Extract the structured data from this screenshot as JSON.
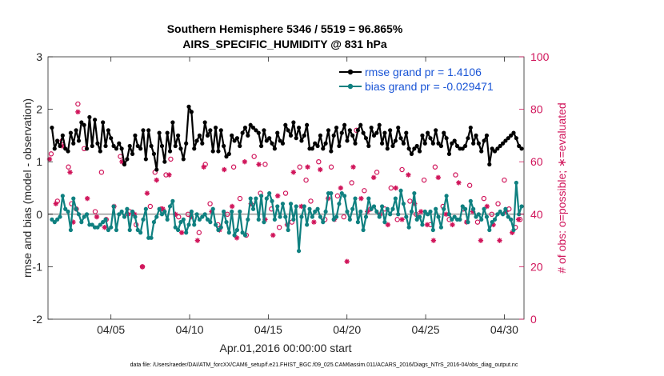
{
  "chart_data": {
    "type": "line",
    "title": "Southern Hemisphere 5346 / 5519 = 96.865%",
    "subtitle": "AIRS_SPECIFIC_HUMIDITY @ 831 hPa",
    "xlabel": "Apr.01,2016 00:00:00 start",
    "ylabel_left": "rmse and bias (model - observation)",
    "ylabel_right": "# of obs: o=possible; ∗=evaluated",
    "xlim": [
      1.0,
      31.25
    ],
    "ylim_left": [
      -2,
      3
    ],
    "ylim_right": [
      0,
      100
    ],
    "x_ticks": [
      5,
      10,
      15,
      20,
      25,
      30
    ],
    "x_tick_labels": [
      "04/05",
      "04/10",
      "04/15",
      "04/20",
      "04/25",
      "04/30"
    ],
    "y_ticks_left": [
      -2,
      -1,
      0,
      1,
      2,
      3
    ],
    "y_ticks_right": [
      0,
      20,
      40,
      60,
      80,
      100
    ],
    "legend_location": "top-right",
    "colors": {
      "rmse": "#000000",
      "bias": "#0f8080",
      "obs": "#d0145a",
      "zero_line": "#b0b0b0",
      "legend_text": "#1a55d6"
    },
    "series": [
      {
        "name": "rmse grand pr = 1.4106",
        "key": "rmse",
        "values": [
          1.65,
          1.25,
          1.4,
          1.3,
          1.5,
          1.25,
          1.2,
          1.55,
          1.35,
          1.6,
          1.4,
          1.75,
          1.7,
          1.25,
          1.85,
          1.3,
          1.8,
          1.35,
          1.2,
          1.75,
          1.3,
          1.6,
          1.45,
          1.3,
          1.25,
          1.35,
          1.25,
          0.95,
          1.05,
          1.3,
          1.15,
          1.5,
          1.3,
          1.25,
          1.6,
          1.05,
          1.6,
          1.3,
          1.15,
          0.85,
          1.55,
          1.3,
          1.0,
          1.55,
          1.2,
          1.75,
          1.3,
          1.5,
          1.25,
          1.05,
          1.35,
          2.05,
          1.95,
          1.25,
          1.4,
          1.5,
          1.35,
          1.75,
          1.5,
          1.6,
          1.2,
          1.65,
          1.2,
          1.6,
          1.3,
          1.1,
          1.15,
          1.5,
          1.4,
          1.45,
          1.3,
          1.55,
          1.65,
          1.5,
          1.7,
          1.65,
          1.6,
          1.55,
          1.3,
          1.6,
          1.4,
          1.45,
          1.35,
          1.25,
          1.55,
          1.4,
          1.35,
          1.7,
          1.6,
          1.5,
          1.75,
          1.45,
          1.65,
          1.4,
          1.5,
          1.7,
          1.25,
          1.25,
          1.35,
          1.3,
          1.5,
          1.25,
          1.35,
          1.6,
          1.2,
          1.5,
          1.65,
          1.3,
          1.55,
          1.7,
          1.4,
          1.6,
          1.5,
          1.35,
          1.6,
          1.7,
          1.55,
          1.45,
          1.3,
          1.65,
          1.5,
          1.55,
          1.7,
          1.35,
          1.55,
          1.25,
          1.6,
          1.3,
          1.4,
          1.65,
          1.45,
          1.35,
          1.55,
          1.25,
          1.15,
          1.25,
          1.3,
          1.2,
          1.5,
          1.35,
          1.55,
          1.45,
          1.35,
          1.6,
          1.35,
          1.3,
          1.55,
          1.45,
          1.15,
          1.35,
          1.4,
          1.3,
          1.25,
          1.25,
          1.3,
          1.45,
          1.65,
          1.35,
          1.5,
          1.35,
          1.2,
          1.4,
          1.5,
          0.95,
          1.25,
          1.2,
          1.25,
          1.3,
          1.35,
          1.4,
          1.45,
          1.5,
          1.55,
          1.45,
          1.3,
          1.25
        ]
      },
      {
        "name": "bias grand pr = -0.029471",
        "key": "bias",
        "values": [
          -0.1,
          -0.15,
          -0.1,
          -0.05,
          0.35,
          0.1,
          0.05,
          -0.3,
          0.3,
          0.1,
          0.0,
          -0.15,
          -0.05,
          0.0,
          -0.2,
          -0.2,
          -0.25,
          -0.25,
          -0.2,
          -0.15,
          -0.1,
          -0.3,
          -0.25,
          0.15,
          -0.3,
          0.0,
          0.05,
          -0.05,
          0.1,
          -0.3,
          0.05,
          -0.05,
          -0.3,
          -0.35,
          -0.1,
          0.1,
          -0.45,
          -0.45,
          -0.15,
          -0.05,
          0.1,
          0.0,
          0.05,
          -0.1,
          0.15,
          0.25,
          -0.25,
          -0.3,
          -0.15,
          -0.1,
          -0.35,
          -0.2,
          0.05,
          -0.2,
          0.0,
          -0.1,
          -0.05,
          0.0,
          -0.1,
          -0.15,
          0.1,
          -0.2,
          -0.3,
          -0.25,
          0.05,
          -0.15,
          -0.35,
          0.05,
          -0.4,
          -0.3,
          0.05,
          -0.35,
          -0.4,
          -0.1,
          0.3,
          0.1,
          0.3,
          -0.1,
          0.35,
          -0.15,
          0.3,
          0.4,
          0.25,
          -0.1,
          0.15,
          -0.05,
          0.2,
          -0.05,
          -0.3,
          0.2,
          -0.1,
          0.15,
          -0.7,
          -0.05,
          0.15,
          -0.2,
          0.1,
          -0.05,
          0.05,
          0.1,
          -0.05,
          -0.15,
          0.05,
          0.4,
          0.4,
          -0.1,
          -0.05,
          0.2,
          0.4,
          0.35,
          0.05,
          -0.1,
          0.1,
          0.3,
          -0.15,
          0.05,
          -0.3,
          -0.05,
          0.3,
          0.1,
          0.15,
          0.05,
          -0.05,
          0.15,
          -0.15,
          0.1,
          0.0,
          0.1,
          0.3,
          0.0,
          0.45,
          0.2,
          -0.05,
          -0.25,
          0.05,
          0.4,
          -0.1,
          -0.05,
          -0.2,
          0.05,
          0.0,
          0.05,
          -0.3,
          0.1,
          -0.05,
          -0.25,
          0.1,
          0.35,
          0.0,
          -0.1,
          -0.05,
          -0.1,
          -0.1,
          0.15,
          0.1,
          -0.15,
          0.25,
          0.1,
          -0.05,
          0.0,
          -0.1,
          0.1,
          -0.05,
          -0.3,
          -0.15,
          -0.1,
          0.0,
          0.05,
          0.0,
          0.1,
          -0.05,
          -0.1,
          -0.3,
          0.6,
          0.0,
          0.15
        ]
      }
    ],
    "obs_possible": [
      [
        1.2,
        63
      ],
      [
        1.6,
        45
      ],
      [
        1.9,
        68
      ],
      [
        2.3,
        58
      ],
      [
        2.5,
        44
      ],
      [
        2.8,
        42
      ],
      [
        2.9,
        82
      ],
      [
        3.3,
        65
      ],
      [
        4.0,
        41
      ],
      [
        4.4,
        56
      ],
      [
        4.7,
        38
      ],
      [
        5.6,
        62
      ],
      [
        6.2,
        41
      ],
      [
        6.6,
        36
      ],
      [
        7.0,
        20
      ],
      [
        7.5,
        43
      ],
      [
        7.8,
        56
      ],
      [
        8.2,
        42
      ],
      [
        8.5,
        55
      ],
      [
        8.8,
        61
      ],
      [
        9.3,
        39
      ],
      [
        9.9,
        40
      ],
      [
        10.6,
        33
      ],
      [
        11.0,
        59
      ],
      [
        11.3,
        44
      ],
      [
        11.8,
        36
      ],
      [
        12.4,
        40
      ],
      [
        12.8,
        58
      ],
      [
        13.2,
        46
      ],
      [
        13.6,
        32
      ],
      [
        14.1,
        62
      ],
      [
        14.5,
        48
      ],
      [
        14.8,
        59
      ],
      [
        15.2,
        42
      ],
      [
        15.7,
        35
      ],
      [
        16.1,
        48
      ],
      [
        16.5,
        37
      ],
      [
        17.0,
        58
      ],
      [
        17.4,
        53
      ],
      [
        17.7,
        45
      ],
      [
        18.2,
        60
      ],
      [
        18.6,
        38
      ],
      [
        19.0,
        58
      ],
      [
        19.4,
        47
      ],
      [
        19.8,
        39
      ],
      [
        20.3,
        52
      ],
      [
        20.6,
        72
      ],
      [
        21.1,
        49
      ],
      [
        21.5,
        42
      ],
      [
        21.9,
        56
      ],
      [
        22.4,
        42
      ],
      [
        22.8,
        50
      ],
      [
        23.2,
        38
      ],
      [
        23.5,
        57
      ],
      [
        24.0,
        45
      ],
      [
        24.4,
        40
      ],
      [
        24.9,
        53
      ],
      [
        25.3,
        36
      ],
      [
        25.6,
        58
      ],
      [
        26.1,
        43
      ],
      [
        26.5,
        38
      ],
      [
        26.9,
        55
      ],
      [
        27.4,
        42
      ],
      [
        27.8,
        51
      ],
      [
        28.3,
        37
      ],
      [
        28.7,
        46
      ],
      [
        29.2,
        40
      ],
      [
        29.6,
        44
      ],
      [
        30.0,
        53
      ],
      [
        30.3,
        42
      ],
      [
        30.7,
        35
      ],
      [
        31.0,
        38
      ]
    ],
    "obs_evaluated": [
      [
        1.1,
        61
      ],
      [
        1.5,
        44
      ],
      [
        1.9,
        66
      ],
      [
        2.4,
        56
      ],
      [
        2.6,
        37
      ],
      [
        2.9,
        79
      ],
      [
        3.5,
        46
      ],
      [
        4.1,
        39
      ],
      [
        4.6,
        35
      ],
      [
        5.2,
        43
      ],
      [
        5.7,
        60
      ],
      [
        6.1,
        40
      ],
      [
        6.5,
        40
      ],
      [
        7.0,
        20
      ],
      [
        7.3,
        48
      ],
      [
        7.9,
        53
      ],
      [
        8.3,
        42
      ],
      [
        8.7,
        55
      ],
      [
        9.1,
        40
      ],
      [
        9.5,
        33
      ],
      [
        10.1,
        39
      ],
      [
        10.5,
        30
      ],
      [
        10.9,
        58
      ],
      [
        11.4,
        41
      ],
      [
        11.9,
        34
      ],
      [
        12.2,
        57
      ],
      [
        12.7,
        43
      ],
      [
        13.0,
        31
      ],
      [
        13.5,
        60
      ],
      [
        13.9,
        44
      ],
      [
        14.4,
        59
      ],
      [
        14.8,
        38
      ],
      [
        15.3,
        32
      ],
      [
        15.6,
        47
      ],
      [
        16.2,
        36
      ],
      [
        16.6,
        56
      ],
      [
        17.1,
        43
      ],
      [
        17.5,
        58
      ],
      [
        17.9,
        37
      ],
      [
        18.3,
        57
      ],
      [
        18.8,
        46
      ],
      [
        19.2,
        38
      ],
      [
        19.6,
        50
      ],
      [
        20.0,
        22
      ],
      [
        20.4,
        58
      ],
      [
        20.9,
        46
      ],
      [
        21.3,
        41
      ],
      [
        21.7,
        54
      ],
      [
        22.1,
        40
      ],
      [
        22.6,
        36
      ],
      [
        23.1,
        50
      ],
      [
        23.5,
        38
      ],
      [
        23.9,
        55
      ],
      [
        24.3,
        44
      ],
      [
        24.7,
        41
      ],
      [
        25.1,
        36
      ],
      [
        25.5,
        30
      ],
      [
        25.8,
        54
      ],
      [
        26.3,
        40
      ],
      [
        26.7,
        36
      ],
      [
        27.1,
        52
      ],
      [
        27.6,
        37
      ],
      [
        28.0,
        41
      ],
      [
        28.5,
        30
      ],
      [
        28.9,
        43
      ],
      [
        29.3,
        36
      ],
      [
        29.7,
        30
      ],
      [
        30.1,
        41
      ],
      [
        30.5,
        33
      ],
      [
        30.9,
        38
      ]
    ],
    "footnote": "data file: /Users/raeder/DAI/ATM_forcXX/CAM6_setup/f.e21.FHIST_BGC.f09_025.CAM6assim.011/ACARS_2016/Diags_NTrS_2016-04/obs_diag_output.nc"
  }
}
